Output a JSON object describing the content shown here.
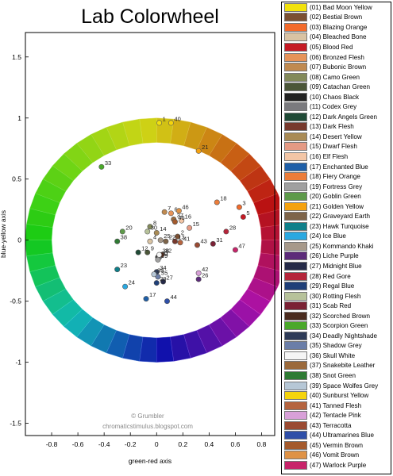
{
  "chart_data": {
    "type": "scatter",
    "title": "Lab Colorwheel",
    "xlabel": "green-red axis",
    "ylabel": "blue-yellow axis",
    "xlim": [
      -1,
      0.9
    ],
    "ylim": [
      -1.6,
      1.7
    ],
    "xticks": [
      -0.8,
      -0.6,
      -0.4,
      -0.2,
      0,
      0.2,
      0.4,
      0.6,
      0.8
    ],
    "xtick_labels": [
      "-0.8",
      "-0.6",
      "-0.4",
      "-0.2",
      "0",
      "0.2",
      "0.4",
      "0.6",
      "0.8"
    ],
    "yticks": [
      1.5,
      1,
      0.5,
      0,
      -0.5,
      -1,
      -1.5
    ],
    "ytick_labels": [
      "1.5",
      "1",
      "0.5",
      "0",
      "-0.5",
      "-1",
      "-1.5"
    ],
    "grid": false,
    "legend_position": "right",
    "wheel": {
      "inner_radius": 0.8,
      "outer_radius": 1.0
    },
    "credit_lines": [
      "© Grumbler",
      "chromaticstimulus.blogspot.com"
    ],
    "points": [
      {
        "id": 1,
        "label": "1",
        "name": "Bad Moon Yellow",
        "legend": "(01) Bad Moon Yellow",
        "color": "#f2e20c",
        "x": 0.02,
        "y": 0.96
      },
      {
        "id": 2,
        "label": "2",
        "name": "Bestial Brown",
        "legend": "(02) Bestial Brown",
        "color": "#7b5032",
        "x": 0.16,
        "y": 0.03
      },
      {
        "id": 3,
        "label": "3",
        "name": "Blazing Orange",
        "legend": "(03) Blazing Orange",
        "color": "#f36b2c",
        "x": 0.63,
        "y": 0.27
      },
      {
        "id": 4,
        "label": "4",
        "name": "Bleached Bone",
        "legend": "(04) Bleached Bone",
        "color": "#d9c3a3",
        "x": -0.05,
        "y": -0.01
      },
      {
        "id": 5,
        "label": "5",
        "name": "Blood Red",
        "legend": "(05) Blood Red",
        "color": "#c51a24",
        "x": 0.66,
        "y": 0.19
      },
      {
        "id": 6,
        "label": "6",
        "name": "Bronzed Flesh",
        "legend": "(06) Bronzed Flesh",
        "color": "#e69359",
        "x": 0.11,
        "y": 0.22
      },
      {
        "id": 7,
        "label": "7",
        "name": "Bubonic Brown",
        "legend": "(07) Bubonic Brown",
        "color": "#c08a50",
        "x": 0.06,
        "y": 0.23
      },
      {
        "id": 8,
        "label": "8",
        "name": "Camo Green",
        "legend": "(08) Camo Green",
        "color": "#838a5a",
        "x": -0.05,
        "y": 0.11
      },
      {
        "id": 9,
        "label": "9",
        "name": "Catachan Green",
        "legend": "(09) Catachan Green",
        "color": "#4b5638",
        "x": -0.07,
        "y": -0.1
      },
      {
        "id": 10,
        "label": "10",
        "name": "Chaos Black",
        "legend": "(10) Chaos Black",
        "color": "#222222",
        "x": 0.01,
        "y": -0.14
      },
      {
        "id": 11,
        "label": "11",
        "name": "Codex Grey",
        "legend": "(11) Codex Grey",
        "color": "#7a7a7e",
        "x": 0.02,
        "y": -0.14
      },
      {
        "id": 12,
        "label": "12",
        "name": "Dark Angels Green",
        "legend": "(12) Dark Angels Green",
        "color": "#1f4a36",
        "x": -0.14,
        "y": -0.1
      },
      {
        "id": 13,
        "label": "13",
        "name": "Dark Flesh",
        "legend": "(13) Dark Flesh",
        "color": "#77392d",
        "x": 0.14,
        "y": -0.01
      },
      {
        "id": 14,
        "label": "14",
        "name": "Desert Yellow",
        "legend": "(14) Desert Yellow",
        "color": "#a98b55",
        "x": 0.0,
        "y": 0.06
      },
      {
        "id": 15,
        "label": "15",
        "name": "Dwarf Flesh",
        "legend": "(15) Dwarf Flesh",
        "color": "#e59a84",
        "x": 0.25,
        "y": 0.1
      },
      {
        "id": 16,
        "label": "16",
        "name": "Elf Flesh",
        "legend": "(16) Elf Flesh",
        "color": "#f3c6a6",
        "x": 0.19,
        "y": 0.16
      },
      {
        "id": 17,
        "label": "17",
        "name": "Enchanted Blue",
        "legend": "(17) Enchanted Blue",
        "color": "#1e5fa8",
        "x": -0.08,
        "y": -0.48
      },
      {
        "id": 18,
        "label": "18",
        "name": "Fiery Orange",
        "legend": "(18) Fiery Orange",
        "color": "#ec7d3a",
        "x": 0.46,
        "y": 0.31
      },
      {
        "id": 19,
        "label": "19",
        "name": "Fortress Grey",
        "legend": "(19) Fortress Grey",
        "color": "#a0a0a0",
        "x": 0.01,
        "y": -0.16
      },
      {
        "id": 20,
        "label": "20",
        "name": "Goblin Green",
        "legend": "(20) Goblin Green",
        "color": "#5e9a4a",
        "x": -0.26,
        "y": 0.07
      },
      {
        "id": 21,
        "label": "21",
        "name": "Golden Yellow",
        "legend": "(21) Golden Yellow",
        "color": "#f5a210",
        "x": 0.32,
        "y": 0.73
      },
      {
        "id": 22,
        "label": "22",
        "name": "Graveyard Earth",
        "legend": "(22) Graveyard Earth",
        "color": "#7e6449",
        "x": 0.07,
        "y": -0.01
      },
      {
        "id": 23,
        "label": "23",
        "name": "Hawk Turquoise",
        "legend": "(23) Hawk Turquoise",
        "color": "#0f7f8a",
        "x": -0.3,
        "y": -0.24
      },
      {
        "id": 24,
        "label": "24",
        "name": "Ice Blue",
        "legend": "(24) Ice Blue",
        "color": "#2ba8e0",
        "x": -0.24,
        "y": -0.38
      },
      {
        "id": 25,
        "label": "25",
        "name": "Kommando Khaki",
        "legend": "(25) Kommando Khaki",
        "color": "#a7998a",
        "x": 0.03,
        "y": 0.0
      },
      {
        "id": 26,
        "label": "26",
        "name": "Liche Purple",
        "legend": "(26) Liche Purple",
        "color": "#5c2b7a",
        "x": 0.32,
        "y": -0.32
      },
      {
        "id": 27,
        "label": "27",
        "name": "Midnight Blue",
        "legend": "(27) Midnight Blue",
        "color": "#252a48",
        "x": 0.05,
        "y": -0.34
      },
      {
        "id": 28,
        "label": "28",
        "name": "Red Gore",
        "legend": "(28) Red Gore",
        "color": "#b5253a",
        "x": 0.53,
        "y": 0.07
      },
      {
        "id": 29,
        "label": "29",
        "name": "Regal Blue",
        "legend": "(29) Regal Blue",
        "color": "#1f3f78",
        "x": 0.0,
        "y": -0.35
      },
      {
        "id": 30,
        "label": "30",
        "name": "Rotting Flesh",
        "legend": "(30) Rotting Flesh",
        "color": "#b7c29a",
        "x": -0.07,
        "y": 0.07
      },
      {
        "id": 31,
        "label": "31",
        "name": "Scab Red",
        "legend": "(31) Scab Red",
        "color": "#7b2235",
        "x": 0.43,
        "y": -0.03
      },
      {
        "id": 32,
        "label": "32",
        "name": "Scorched Brown",
        "legend": "(32) Scorched Brown",
        "color": "#4a2b1e",
        "x": 0.04,
        "y": -0.12
      },
      {
        "id": 33,
        "label": "33",
        "name": "Scorpion Green",
        "legend": "(33) Scorpion Green",
        "color": "#4aa82a",
        "x": -0.42,
        "y": 0.6
      },
      {
        "id": 34,
        "label": "34",
        "name": "Deadly Nightshade",
        "legend": "(34) Deadly Nightshade",
        "color": "#2e3b57",
        "x": 0.0,
        "y": -0.26
      },
      {
        "id": 35,
        "label": "35",
        "name": "Shadow Grey",
        "legend": "(35) Shadow Grey",
        "color": "#6b7ea8",
        "x": 0.01,
        "y": -0.3
      },
      {
        "id": 36,
        "label": "36",
        "name": "Skull White",
        "legend": "(36) Skull White",
        "color": "#f5f5f5",
        "x": 0.02,
        "y": -0.12
      },
      {
        "id": 37,
        "label": "37",
        "name": "Snakebite Leather",
        "legend": "(37) Snakebite Leather",
        "color": "#9b6a3c",
        "x": 0.13,
        "y": 0.17
      },
      {
        "id": 38,
        "label": "38",
        "name": "Snot Green",
        "legend": "(38) Snot Green",
        "color": "#2f7b34",
        "x": -0.3,
        "y": -0.01
      },
      {
        "id": 39,
        "label": "39",
        "name": "Space Wolfes Grey",
        "legend": "(39) Space Wolfes Grey",
        "color": "#b6c7d6",
        "x": -0.02,
        "y": -0.28
      },
      {
        "id": 40,
        "label": "40",
        "name": "Sunburst Yellow",
        "legend": "(40) Sunburst Yellow",
        "color": "#f5d40c",
        "x": 0.11,
        "y": 0.96
      },
      {
        "id": 41,
        "label": "41",
        "name": "Tanned Flesh",
        "legend": "(41) Tanned Flesh",
        "color": "#b5643f",
        "x": 0.18,
        "y": -0.02
      },
      {
        "id": 42,
        "label": "42",
        "name": "Tentacle Pink",
        "legend": "(42) Tentacle Pink",
        "color": "#d8a0d8",
        "x": 0.32,
        "y": -0.27
      },
      {
        "id": 43,
        "label": "43",
        "name": "Terracotta",
        "legend": "(43) Terracotta",
        "color": "#9a4a32",
        "x": 0.31,
        "y": -0.04
      },
      {
        "id": 44,
        "label": "44",
        "name": "Ultramarines Blue",
        "legend": "(44) Ultramarines Blue",
        "color": "#2f4fa8",
        "x": 0.08,
        "y": -0.5
      },
      {
        "id": 45,
        "label": "45",
        "name": "Vermin Brown",
        "legend": "(45) Vermin Brown",
        "color": "#a45a2d",
        "x": 0.14,
        "y": 0.15
      },
      {
        "id": 46,
        "label": "46",
        "name": "Vomit Brown",
        "legend": "(46) Vomit Brown",
        "color": "#df9245",
        "x": 0.17,
        "y": 0.24
      },
      {
        "id": 47,
        "label": "47",
        "name": "Warlock Purple",
        "legend": "(47) Warlock Purple",
        "color": "#c8246a",
        "x": 0.6,
        "y": -0.08
      }
    ]
  }
}
